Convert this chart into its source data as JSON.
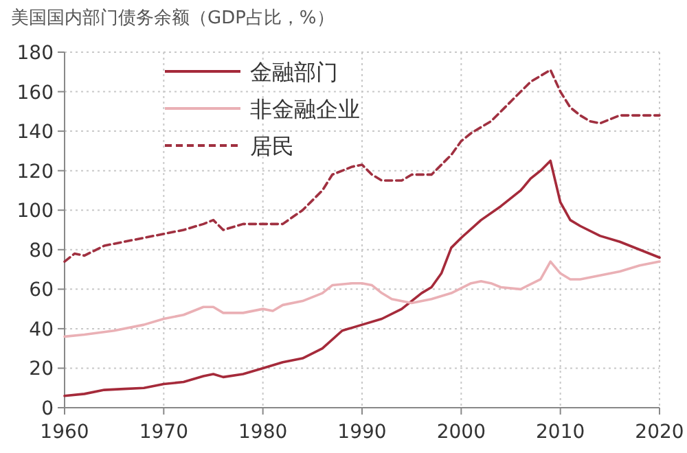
{
  "chart_data": {
    "type": "line",
    "title": "美国国内部门债务余额（GDP占比，%）",
    "xlim": [
      1960,
      2020
    ],
    "xticks": [
      1960,
      1970,
      1980,
      1990,
      2000,
      2010,
      2020
    ],
    "ylim": [
      0,
      180
    ],
    "yticks": [
      0,
      20,
      40,
      60,
      80,
      100,
      120,
      140,
      160,
      180
    ],
    "grid": true,
    "legend": "top left",
    "marker": "none",
    "series": [
      {
        "name": "金融部门",
        "color": "#a52a3a",
        "line_style": "solid",
        "x": [
          1960,
          1962,
          1964,
          1966,
          1968,
          1970,
          1972,
          1974,
          1975,
          1976,
          1978,
          1980,
          1982,
          1984,
          1986,
          1988,
          1990,
          1992,
          1994,
          1996,
          1997,
          1998,
          1999,
          2000,
          2002,
          2004,
          2006,
          2007,
          2008,
          2009,
          2010,
          2011,
          2012,
          2014,
          2016,
          2018,
          2020
        ],
        "values": [
          6,
          7,
          9,
          9.5,
          10,
          12,
          13,
          16,
          17,
          15.5,
          17,
          20,
          23,
          25,
          30,
          39,
          42,
          45,
          50,
          58,
          61,
          68,
          81,
          86,
          95,
          102,
          110,
          116,
          120,
          125,
          104,
          95,
          92,
          87,
          84,
          80,
          76
        ]
      },
      {
        "name": "非金融企业",
        "color": "#eab0b5",
        "line_style": "solid",
        "x": [
          1960,
          1962,
          1965,
          1968,
          1970,
          1972,
          1974,
          1975,
          1976,
          1978,
          1980,
          1981,
          1982,
          1984,
          1986,
          1987,
          1989,
          1990,
          1991,
          1992,
          1993,
          1995,
          1997,
          1999,
          2001,
          2002,
          2003,
          2004,
          2006,
          2008,
          2009,
          2010,
          2011,
          2012,
          2014,
          2016,
          2018,
          2020
        ],
        "values": [
          36,
          37,
          39,
          42,
          45,
          47,
          51,
          51,
          48,
          48,
          50,
          49,
          52,
          54,
          58,
          62,
          63,
          63,
          62,
          58,
          55,
          53,
          55,
          58,
          63,
          64,
          63,
          61,
          60,
          65,
          74,
          68,
          65,
          65,
          67,
          69,
          72,
          74
        ]
      },
      {
        "name": "居民",
        "color": "#a03040",
        "line_style": "dashed",
        "x": [
          1960,
          1961,
          1962,
          1964,
          1966,
          1968,
          1970,
          1972,
          1974,
          1975,
          1976,
          1978,
          1980,
          1982,
          1984,
          1986,
          1987,
          1989,
          1990,
          1991,
          1992,
          1994,
          1995,
          1997,
          1999,
          2000,
          2001,
          2003,
          2005,
          2006,
          2007,
          2008,
          2009,
          2010,
          2011,
          2012,
          2013,
          2014,
          2015,
          2016,
          2018,
          2020
        ],
        "values": [
          74,
          78,
          77,
          82,
          84,
          86,
          88,
          90,
          93,
          95,
          90,
          93,
          93,
          93,
          100,
          110,
          118,
          122,
          123,
          118,
          115,
          115,
          118,
          118,
          128,
          135,
          139,
          145,
          155,
          160,
          165,
          168,
          171,
          160,
          152,
          148,
          145,
          144,
          146,
          148,
          148,
          148
        ]
      }
    ]
  }
}
